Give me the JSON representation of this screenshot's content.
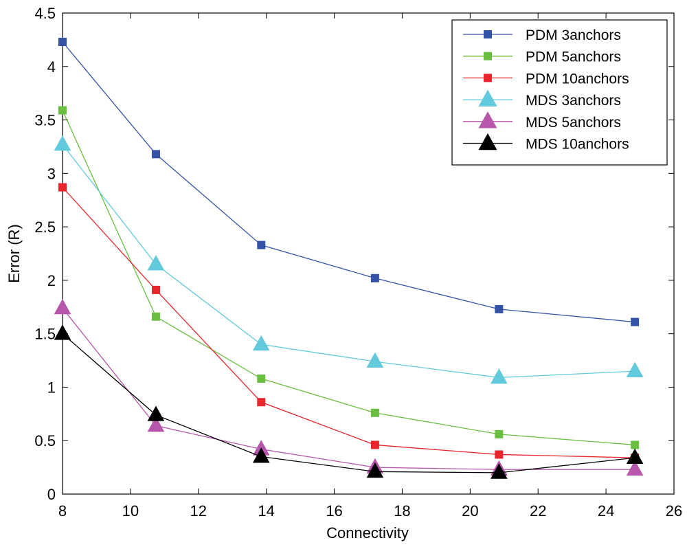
{
  "chart_data": {
    "type": "line",
    "title": "",
    "xlabel": "Connectivity",
    "ylabel": "Error (R)",
    "xlim": [
      8,
      26
    ],
    "ylim": [
      0,
      4.5
    ],
    "xticks": [
      8,
      10,
      12,
      14,
      16,
      18,
      20,
      22,
      24,
      26
    ],
    "yticks": [
      0,
      0.5,
      1,
      1.5,
      2,
      2.5,
      3,
      3.5,
      4,
      4.5
    ],
    "xtick_labels": [
      "8",
      "10",
      "12",
      "14",
      "16",
      "18",
      "20",
      "22",
      "24",
      "26"
    ],
    "ytick_labels": [
      "0",
      "0.5",
      "1",
      "1.5",
      "2",
      "2.5",
      "3",
      "3.5",
      "4",
      "4.5"
    ],
    "grid": false,
    "legend_position": "top-right",
    "x": [
      8,
      10.75,
      13.85,
      17.2,
      20.85,
      24.85
    ],
    "series": [
      {
        "name": "PDM 3anchors",
        "marker": "square",
        "color": "#3352a8",
        "values": [
          4.23,
          3.18,
          2.33,
          2.02,
          1.73,
          1.61
        ]
      },
      {
        "name": "PDM 5anchors",
        "marker": "square",
        "color": "#6abf40",
        "values": [
          3.59,
          1.66,
          1.08,
          0.76,
          0.56,
          0.46
        ]
      },
      {
        "name": "PDM 10anchors",
        "marker": "square",
        "color": "#e8262b",
        "values": [
          2.87,
          1.91,
          0.86,
          0.46,
          0.37,
          0.34
        ]
      },
      {
        "name": "MDS 3anchors",
        "marker": "triangle",
        "color": "#63c9dd",
        "values": [
          3.27,
          2.15,
          1.4,
          1.24,
          1.09,
          1.15
        ]
      },
      {
        "name": "MDS 5anchors",
        "marker": "triangle",
        "color": "#b657ab",
        "values": [
          1.74,
          0.64,
          0.42,
          0.25,
          0.23,
          0.23
        ]
      },
      {
        "name": "MDS 10anchors",
        "marker": "triangle",
        "color": "#000000",
        "values": [
          1.5,
          0.74,
          0.35,
          0.21,
          0.2,
          0.34
        ]
      }
    ]
  }
}
